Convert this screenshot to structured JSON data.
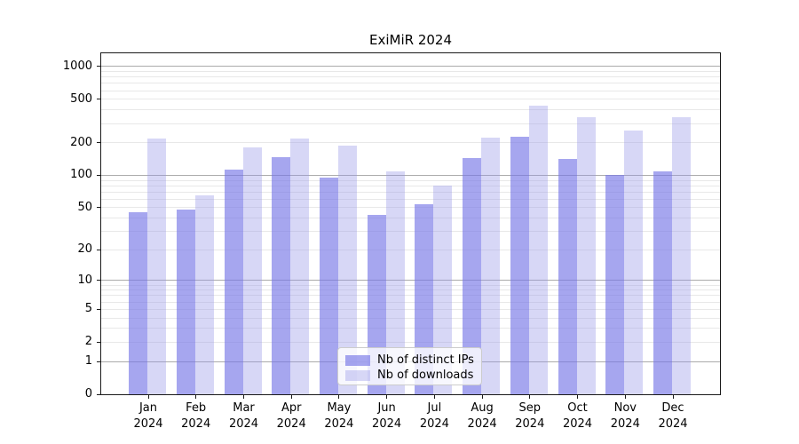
{
  "chart_data": {
    "type": "bar",
    "title": "ExiMiR 2024",
    "categories": [
      "Jan",
      "Feb",
      "Mar",
      "Apr",
      "May",
      "Jun",
      "Jul",
      "Aug",
      "Sep",
      "Oct",
      "Nov",
      "Dec"
    ],
    "x_sublabel": "2024",
    "series": [
      {
        "name": "Nb of distinct IPs",
        "color": "#7878e6",
        "alpha": 0.66,
        "values": [
          45,
          48,
          112,
          148,
          96,
          43,
          54,
          145,
          225,
          142,
          100,
          108
        ]
      },
      {
        "name": "Nb of downloads",
        "color": "#9696e8",
        "alpha": 0.38,
        "values": [
          220,
          65,
          182,
          220,
          189,
          108,
          81,
          223,
          435,
          344,
          260,
          344
        ]
      }
    ],
    "y_scale": "log1p",
    "ylim": [
      0,
      1320
    ],
    "y_ticks": [
      0,
      1,
      2,
      5,
      10,
      20,
      50,
      100,
      200,
      500,
      1000
    ],
    "grid": {
      "major_values": [
        1,
        10,
        100,
        1000
      ],
      "minor_values": [
        2,
        3,
        4,
        5,
        6,
        7,
        8,
        9,
        20,
        30,
        40,
        50,
        60,
        70,
        80,
        90,
        200,
        300,
        400,
        500,
        600,
        700,
        800,
        900
      ],
      "major_color": "#ababab",
      "minor_color": "#e8e8e8"
    },
    "legend_position": "lower center"
  }
}
